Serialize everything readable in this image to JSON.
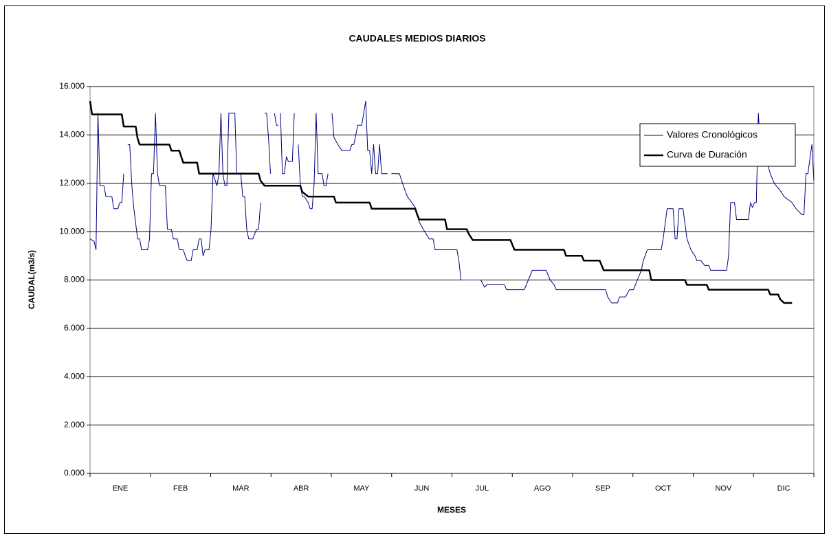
{
  "chart_data": {
    "type": "line",
    "title": "CAUDALES MEDIOS DIARIOS",
    "x_label": "MESES",
    "y_label": "CAUDAL(m3/s)",
    "categories": [
      "ENE",
      "FEB",
      "MAR",
      "ABR",
      "MAY",
      "JUN",
      "JUL",
      "AGO",
      "SEP",
      "OCT",
      "NOV",
      "DIC"
    ],
    "xlim": [
      0,
      365
    ],
    "ylim": [
      0,
      16
    ],
    "yticks": [
      {
        "value": 0,
        "label": "0.000"
      },
      {
        "value": 2,
        "label": "2.000"
      },
      {
        "value": 4,
        "label": "4.000"
      },
      {
        "value": 6,
        "label": "6.000"
      },
      {
        "value": 8,
        "label": "8.000"
      },
      {
        "value": 10,
        "label": "10.000"
      },
      {
        "value": 12,
        "label": "12.000"
      },
      {
        "value": 14,
        "label": "14.000"
      },
      {
        "value": 16,
        "label": "16.000"
      }
    ],
    "grid": true,
    "legend": "upper right",
    "series": [
      {
        "name": "Valores Cronológicos",
        "color": "#000080",
        "x": [
          0,
          2,
          3,
          4,
          5,
          7,
          8,
          11,
          12,
          14,
          15,
          16,
          17,
          18,
          19,
          20,
          21,
          22,
          24,
          25,
          26,
          29,
          30,
          31,
          32,
          33,
          34,
          35,
          38,
          39,
          41,
          42,
          44,
          45,
          47,
          48,
          49,
          51,
          52,
          54,
          55,
          56,
          57,
          58,
          60,
          61,
          62,
          64,
          65,
          66,
          67,
          68,
          69,
          70,
          71,
          73,
          74,
          76,
          77,
          78,
          79,
          80,
          82,
          84,
          85,
          86,
          87,
          88,
          89,
          90,
          91,
          92,
          93,
          94,
          95,
          95.5,
          96,
          97,
          98,
          99,
          100,
          102,
          103,
          104,
          105,
          106,
          107,
          108,
          110,
          111,
          112,
          113,
          114,
          115,
          117,
          118,
          119,
          120,
          121,
          122,
          123,
          125,
          127,
          131,
          132,
          133,
          135,
          137,
          138,
          139,
          140,
          141,
          142,
          143,
          144,
          145,
          146,
          147,
          150,
          151,
          152,
          156,
          158,
          160,
          164,
          165,
          166,
          168,
          171,
          173,
          174,
          185,
          186,
          187,
          197,
          199,
          200,
          209,
          210,
          219,
          221,
          223,
          230,
          232,
          234,
          235,
          260,
          261,
          263,
          266,
          267,
          270,
          272,
          274,
          276,
          278,
          279,
          281,
          288,
          289,
          291,
          294,
          295,
          296,
          297,
          299,
          301,
          303,
          305,
          306,
          308,
          310,
          312,
          313,
          321,
          322,
          323,
          325,
          326,
          332,
          333,
          334,
          335,
          336,
          337,
          338,
          341,
          343,
          345,
          348,
          350,
          354,
          356,
          359,
          360,
          361,
          362,
          364,
          365
        ],
        "values": [
          9.7,
          9.6,
          9.25,
          14.9,
          11.9,
          11.9,
          11.45,
          11.45,
          10.95,
          10.95,
          11.2,
          11.2,
          12.4,
          null,
          13.6,
          13.6,
          12.0,
          11.0,
          9.7,
          9.7,
          9.25,
          9.25,
          9.7,
          12.4,
          12.4,
          14.9,
          12.4,
          11.9,
          11.9,
          10.1,
          10.1,
          9.7,
          9.7,
          9.25,
          9.25,
          9.0,
          8.8,
          8.8,
          9.25,
          9.25,
          9.7,
          9.7,
          9.0,
          9.25,
          9.25,
          10.1,
          12.4,
          11.9,
          12.4,
          14.9,
          12.4,
          11.9,
          11.9,
          14.9,
          14.9,
          14.9,
          12.4,
          12.4,
          11.45,
          11.45,
          10.1,
          9.7,
          9.7,
          10.1,
          10.1,
          11.2,
          null,
          14.9,
          14.9,
          13.9,
          12.4,
          null,
          14.9,
          14.4,
          14.4,
          null,
          14.9,
          12.4,
          12.4,
          13.1,
          12.9,
          12.9,
          14.9,
          null,
          13.6,
          12.0,
          11.45,
          11.45,
          11.2,
          10.95,
          10.95,
          12.0,
          14.9,
          12.4,
          12.4,
          11.9,
          11.9,
          12.4,
          null,
          14.9,
          13.9,
          13.6,
          13.35,
          13.35,
          13.6,
          13.6,
          14.4,
          14.4,
          14.9,
          15.4,
          13.35,
          13.35,
          12.4,
          13.6,
          12.4,
          12.4,
          13.6,
          12.4,
          12.4,
          null,
          12.4,
          12.4,
          11.9,
          11.45,
          11.0,
          10.7,
          10.4,
          10.1,
          9.7,
          9.7,
          9.25,
          9.25,
          8.8,
          8.0,
          8.0,
          7.7,
          7.8,
          7.8,
          7.6,
          7.6,
          8.0,
          8.4,
          8.4,
          8.0,
          7.8,
          7.6,
          7.6,
          7.3,
          7.05,
          7.05,
          7.3,
          7.3,
          7.6,
          7.6,
          8.0,
          8.4,
          8.8,
          9.25,
          9.25,
          9.7,
          10.95,
          10.95,
          9.7,
          9.7,
          10.95,
          10.95,
          9.7,
          9.25,
          9.0,
          8.8,
          8.8,
          8.6,
          8.6,
          8.4,
          8.4,
          9.0,
          11.2,
          11.2,
          10.5,
          10.5,
          11.2,
          11.0,
          11.2,
          11.2,
          14.9,
          13.6,
          13.0,
          12.4,
          12.0,
          11.7,
          11.45,
          11.2,
          10.95,
          10.7,
          10.7,
          12.4,
          12.4,
          13.6,
          12.1
        ]
      },
      {
        "name": "Curva de Duración",
        "color": "#000000",
        "x": [
          0,
          1,
          16,
          17,
          23,
          24,
          25,
          40,
          41,
          45,
          46,
          47,
          54,
          55,
          85,
          86,
          88,
          106,
          107,
          110,
          123,
          124,
          141,
          142,
          164,
          165,
          166,
          179,
          180,
          190,
          191,
          193,
          212,
          213,
          214,
          239,
          240,
          248,
          249,
          257,
          258,
          259,
          282,
          283,
          300,
          301,
          311,
          312,
          342,
          343,
          347,
          348,
          350,
          354
        ],
        "values": [
          15.4,
          14.85,
          14.85,
          14.35,
          14.35,
          13.85,
          13.6,
          13.6,
          13.35,
          13.35,
          13.1,
          12.85,
          12.85,
          12.4,
          12.4,
          12.1,
          11.9,
          11.9,
          11.65,
          11.45,
          11.45,
          11.2,
          11.2,
          10.95,
          10.95,
          10.7,
          10.5,
          10.5,
          10.1,
          10.1,
          9.9,
          9.65,
          9.65,
          9.45,
          9.25,
          9.25,
          9.0,
          9.0,
          8.8,
          8.8,
          8.6,
          8.4,
          8.4,
          8.0,
          8.0,
          7.8,
          7.8,
          7.6,
          7.6,
          7.4,
          7.4,
          7.2,
          7.05,
          7.05
        ]
      }
    ]
  }
}
